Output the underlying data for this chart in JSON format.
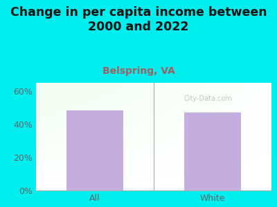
{
  "title": "Change in per capita income between\n2000 and 2022",
  "subtitle": "Belspring, VA",
  "categories": [
    "All",
    "White"
  ],
  "values": [
    48.5,
    47.0
  ],
  "bar_color": "#c4aede",
  "title_fontsize": 12.5,
  "subtitle_fontsize": 10,
  "subtitle_color": "#a06060",
  "title_color": "#111111",
  "bg_color": "#00eeee",
  "ylabel_ticks": [
    "0%",
    "20%",
    "40%",
    "60%"
  ],
  "ytick_vals": [
    0,
    20,
    40,
    60
  ],
  "ylim": [
    0,
    65
  ],
  "watermark": "City-Data.com",
  "tick_label_color": "#666666",
  "divider_color": "#aaaaaa",
  "bottom_line_color": "#aaaaaa"
}
